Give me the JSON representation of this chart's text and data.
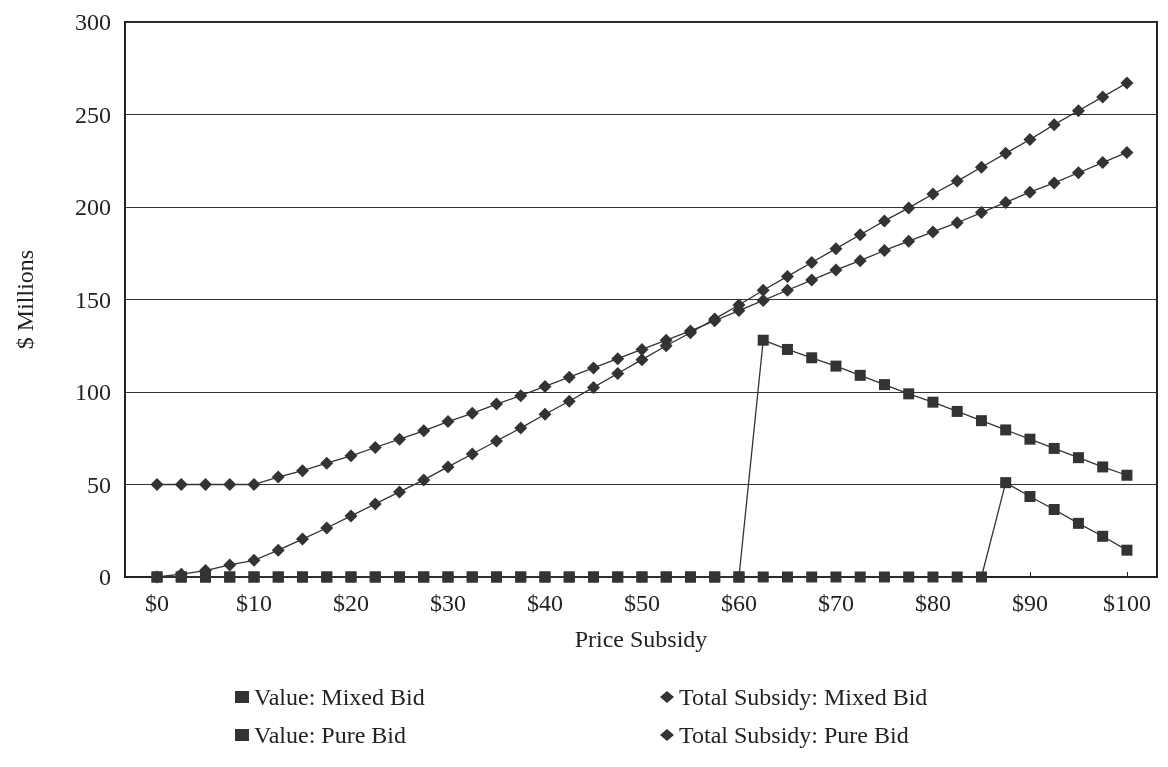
{
  "chart_data": {
    "type": "line",
    "xlabel": "Price Subsidy",
    "ylabel": "$ Millions",
    "x": [
      0,
      2.5,
      5,
      7.5,
      10,
      12.5,
      15,
      17.5,
      20,
      22.5,
      25,
      27.5,
      30,
      32.5,
      35,
      37.5,
      40,
      42.5,
      45,
      47.5,
      50,
      52.5,
      55,
      57.5,
      60,
      62.5,
      65,
      67.5,
      70,
      72.5,
      75,
      77.5,
      80,
      82.5,
      85,
      87.5,
      90,
      92.5,
      95,
      97.5,
      100
    ],
    "series": [
      {
        "name": "Value: Mixed Bid",
        "color": "#333333",
        "marker": "square",
        "values": [
          0,
          0,
          0,
          0,
          0,
          0,
          0,
          0,
          0,
          0,
          0,
          0,
          0,
          0,
          0,
          0,
          0,
          0,
          0,
          0,
          0,
          0,
          0,
          0,
          0,
          128,
          123,
          118.5,
          114,
          109,
          104,
          99,
          94.5,
          89.5,
          84.5,
          79.5,
          74.5,
          69.5,
          64.5,
          59.5,
          55
        ]
      },
      {
        "name": "Total Subsidy: Mixed Bid",
        "color": "#333333",
        "marker": "diamond",
        "values": [
          50,
          50,
          50,
          50,
          50,
          54,
          57.5,
          61.5,
          65.5,
          70,
          74.5,
          79,
          84,
          88.5,
          93.5,
          98,
          103,
          108,
          113,
          118,
          123,
          128,
          133,
          138.5,
          144,
          149.5,
          155,
          160.5,
          166,
          171,
          176.5,
          181.5,
          186.5,
          191.5,
          197,
          202.5,
          208,
          213,
          218.5,
          224,
          229.5
        ]
      },
      {
        "name": "Value: Pure Bid",
        "color": "#333333",
        "marker": "square",
        "values": [
          0,
          0,
          0,
          0,
          0,
          0,
          0,
          0,
          0,
          0,
          0,
          0,
          0,
          0,
          0,
          0,
          0,
          0,
          0,
          0,
          0,
          0,
          0,
          0,
          0,
          0,
          0,
          0,
          0,
          0,
          0,
          0,
          0,
          0,
          0,
          51,
          43.5,
          36.5,
          29,
          22,
          14.5
        ]
      },
      {
        "name": "Total Subsidy: Pure Bid",
        "color": "#333333",
        "marker": "diamond",
        "values": [
          0,
          1.5,
          3.5,
          6.5,
          9,
          14.5,
          20.5,
          26.5,
          33,
          39.5,
          46,
          52.5,
          59.5,
          66.5,
          73.5,
          80.5,
          88,
          95,
          102.5,
          110,
          117.5,
          125,
          132,
          139.5,
          147,
          155,
          162.5,
          170,
          177.5,
          185,
          192.5,
          199.5,
          207,
          214,
          221.5,
          229,
          236.5,
          244.5,
          252,
          259.5,
          267
        ]
      }
    ],
    "xlim": [
      -3.3,
      103.1
    ],
    "xticks": [
      {
        "value": 0,
        "label": "$0"
      },
      {
        "value": 10,
        "label": "$10"
      },
      {
        "value": 20,
        "label": "$20"
      },
      {
        "value": 30,
        "label": "$30"
      },
      {
        "value": 40,
        "label": "$40"
      },
      {
        "value": 50,
        "label": "$50"
      },
      {
        "value": 60,
        "label": "$60"
      },
      {
        "value": 70,
        "label": "$70"
      },
      {
        "value": 80,
        "label": "$80"
      },
      {
        "value": 90,
        "label": "$90"
      },
      {
        "value": 100,
        "label": "$100"
      }
    ],
    "ylim": [
      0,
      300
    ],
    "yticks": [
      0,
      50,
      100,
      150,
      200,
      250,
      300
    ],
    "grid": "y",
    "legend": "bottom",
    "line_style": "solid"
  }
}
